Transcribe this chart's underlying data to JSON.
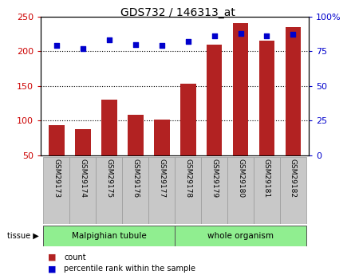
{
  "title": "GDS732 / 146313_at",
  "samples": [
    "GSM29173",
    "GSM29174",
    "GSM29175",
    "GSM29176",
    "GSM29177",
    "GSM29178",
    "GSM29179",
    "GSM29180",
    "GSM29181",
    "GSM29182"
  ],
  "counts": [
    93,
    88,
    130,
    108,
    102,
    153,
    210,
    240,
    215,
    235
  ],
  "percentiles": [
    79,
    77,
    83,
    80,
    79,
    82,
    86,
    88,
    86,
    87
  ],
  "bar_color": "#b22222",
  "dot_color": "#0000cc",
  "ylim_left": [
    50,
    250
  ],
  "ylim_right": [
    0,
    100
  ],
  "yticks_left": [
    50,
    100,
    150,
    200,
    250
  ],
  "yticks_right": [
    0,
    25,
    50,
    75,
    100
  ],
  "ytick_labels_right": [
    "0",
    "25",
    "50",
    "75",
    "100%"
  ],
  "grid_lines": [
    100,
    150,
    200
  ],
  "malpighian_label": "Malpighian tubule",
  "whole_label": "whole organism",
  "tissue_label": "tissue",
  "legend_count_label": "count",
  "legend_pct_label": "percentile rank within the sample",
  "bg_color": "#ffffff",
  "plot_bg_color": "#ffffff",
  "tick_color_left": "#cc0000",
  "tick_color_right": "#0000cc",
  "xtick_bg_color": "#c8c8c8",
  "xtick_edge_color": "#999999",
  "tissue_color": "#90ee90",
  "tissue_edge_color": "#555555"
}
